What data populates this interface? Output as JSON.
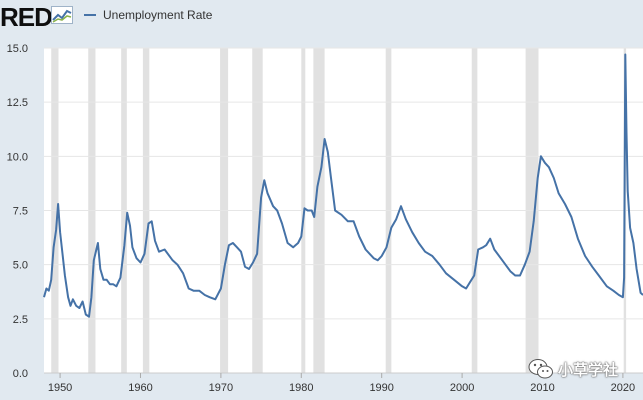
{
  "header": {
    "logo_text": "RED",
    "logo_icon": "line-chart-icon"
  },
  "chart_data": {
    "type": "line",
    "title": "",
    "xlabel": "",
    "ylabel": "",
    "xlim": [
      1948,
      2022.5
    ],
    "ylim": [
      0,
      15
    ],
    "yticks": [
      "0.0",
      "2.5",
      "5.0",
      "7.5",
      "10.0",
      "12.5",
      "15.0"
    ],
    "xticks": [
      "1950",
      "1960",
      "1970",
      "1980",
      "1990",
      "2000",
      "2010",
      "2020"
    ],
    "grid": true,
    "legend": "top-left",
    "colors": {
      "line": "#4572a7",
      "recession": "#e1e1e1",
      "plot_bg": "#ffffff",
      "page_bg": "#e1e9f0"
    },
    "recessions": [
      [
        1948.9,
        1949.8
      ],
      [
        1953.5,
        1954.4
      ],
      [
        1957.6,
        1958.3
      ],
      [
        1960.3,
        1961.1
      ],
      [
        1969.9,
        1970.9
      ],
      [
        1973.9,
        1975.2
      ],
      [
        1980.0,
        1980.5
      ],
      [
        1981.5,
        1982.9
      ],
      [
        1990.5,
        1991.2
      ],
      [
        2001.2,
        2001.9
      ],
      [
        2007.9,
        2009.5
      ],
      [
        2020.1,
        2020.4
      ]
    ],
    "series": [
      {
        "name": "Unemployment Rate",
        "x": [
          1948.0,
          1948.3,
          1948.6,
          1948.9,
          1949.2,
          1949.5,
          1949.75,
          1950.0,
          1950.3,
          1950.6,
          1951.0,
          1951.3,
          1951.6,
          1952.0,
          1952.4,
          1952.8,
          1953.2,
          1953.6,
          1953.9,
          1954.2,
          1954.7,
          1955.0,
          1955.4,
          1955.8,
          1956.2,
          1956.6,
          1957.0,
          1957.5,
          1958.0,
          1958.35,
          1958.7,
          1959.0,
          1959.5,
          1960.0,
          1960.5,
          1961.0,
          1961.4,
          1961.8,
          1962.3,
          1963.0,
          1964.0,
          1964.6,
          1965.3,
          1966.0,
          1966.6,
          1967.3,
          1968.0,
          1968.6,
          1969.3,
          1970.0,
          1970.5,
          1971.0,
          1971.5,
          1972.0,
          1972.5,
          1973.0,
          1973.5,
          1974.0,
          1974.5,
          1975.0,
          1975.4,
          1975.8,
          1976.5,
          1977.0,
          1977.6,
          1978.3,
          1979.0,
          1979.6,
          1980.0,
          1980.4,
          1980.8,
          1981.3,
          1981.6,
          1982.0,
          1982.5,
          1982.9,
          1983.3,
          1983.7,
          1984.2,
          1985.0,
          1985.8,
          1986.5,
          1987.2,
          1988.0,
          1989.0,
          1989.5,
          1990.0,
          1990.6,
          1991.2,
          1991.8,
          1992.4,
          1993.0,
          1993.8,
          1994.6,
          1995.4,
          1996.3,
          1997.2,
          1998.0,
          1999.0,
          2000.0,
          2000.5,
          2001.0,
          2001.5,
          2002.0,
          2002.6,
          2003.0,
          2003.5,
          2004.0,
          2005.0,
          2006.0,
          2006.6,
          2007.2,
          2007.8,
          2008.4,
          2008.9,
          2009.4,
          2009.8,
          2010.3,
          2010.8,
          2011.4,
          2012.0,
          2012.8,
          2013.6,
          2014.4,
          2015.3,
          2016.2,
          2017.0,
          2018.0,
          2018.8,
          2019.5,
          2020.0,
          2020.15,
          2020.3,
          2020.45,
          2020.6,
          2020.9,
          2021.3,
          2021.7,
          2022.2,
          2022.5
        ],
        "y": [
          3.5,
          3.9,
          3.8,
          4.3,
          5.8,
          6.6,
          7.8,
          6.5,
          5.5,
          4.5,
          3.5,
          3.1,
          3.4,
          3.1,
          3.0,
          3.3,
          2.7,
          2.6,
          3.5,
          5.2,
          6.0,
          4.8,
          4.3,
          4.3,
          4.1,
          4.1,
          4.0,
          4.4,
          5.9,
          7.4,
          6.8,
          5.8,
          5.3,
          5.1,
          5.5,
          6.9,
          7.0,
          6.1,
          5.6,
          5.7,
          5.2,
          5.0,
          4.6,
          3.9,
          3.8,
          3.8,
          3.6,
          3.5,
          3.4,
          3.9,
          5.0,
          5.9,
          6.0,
          5.8,
          5.6,
          4.9,
          4.8,
          5.1,
          5.5,
          8.1,
          8.9,
          8.3,
          7.7,
          7.5,
          6.9,
          6.0,
          5.8,
          6.0,
          6.3,
          7.6,
          7.5,
          7.5,
          7.2,
          8.6,
          9.5,
          10.8,
          10.2,
          9.0,
          7.5,
          7.3,
          7.0,
          7.0,
          6.3,
          5.7,
          5.3,
          5.2,
          5.4,
          5.8,
          6.7,
          7.1,
          7.7,
          7.1,
          6.5,
          6.0,
          5.6,
          5.4,
          5.0,
          4.6,
          4.3,
          4.0,
          3.9,
          4.2,
          4.5,
          5.7,
          5.8,
          5.9,
          6.2,
          5.7,
          5.2,
          4.7,
          4.5,
          4.5,
          5.0,
          5.6,
          7.0,
          9.0,
          10.0,
          9.7,
          9.5,
          9.0,
          8.3,
          7.8,
          7.2,
          6.2,
          5.4,
          4.9,
          4.5,
          4.0,
          3.8,
          3.6,
          3.5,
          4.4,
          14.7,
          11.1,
          8.4,
          6.7,
          6.0,
          4.8,
          3.7,
          3.6
        ]
      }
    ]
  },
  "watermark": {
    "text": "小草学社",
    "icon": "wechat-icon"
  }
}
